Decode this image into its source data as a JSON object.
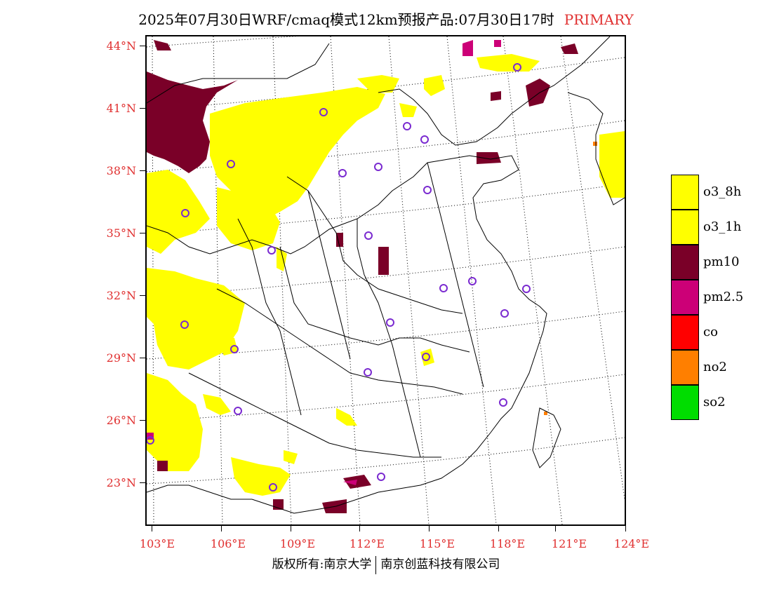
{
  "title": {
    "main": "2025年07月30日WRF/cmaq模式12km预报产品:07月30日17时",
    "tag": "PRIMARY"
  },
  "axes": {
    "lat_labels": [
      "44°N",
      "41°N",
      "38°N",
      "35°N",
      "32°N",
      "29°N",
      "26°N",
      "23°N"
    ],
    "lon_labels": [
      "103°E",
      "106°E",
      "109°E",
      "112°E",
      "115°E",
      "118°E",
      "121°E",
      "124°E"
    ]
  },
  "legend": [
    {
      "label": "o3_8h",
      "color": "#ffff00"
    },
    {
      "label": "o3_1h",
      "color": "#ffff00"
    },
    {
      "label": "pm10",
      "color": "#7a0028"
    },
    {
      "label": "pm2.5",
      "color": "#cc0077"
    },
    {
      "label": "co",
      "color": "#ff0000"
    },
    {
      "label": "no2",
      "color": "#ff7f00"
    },
    {
      "label": "so2",
      "color": "#00dd00"
    }
  ],
  "footer": {
    "left": "版权所有:南京大学",
    "right": "南京创蓝科技有限公司"
  }
}
